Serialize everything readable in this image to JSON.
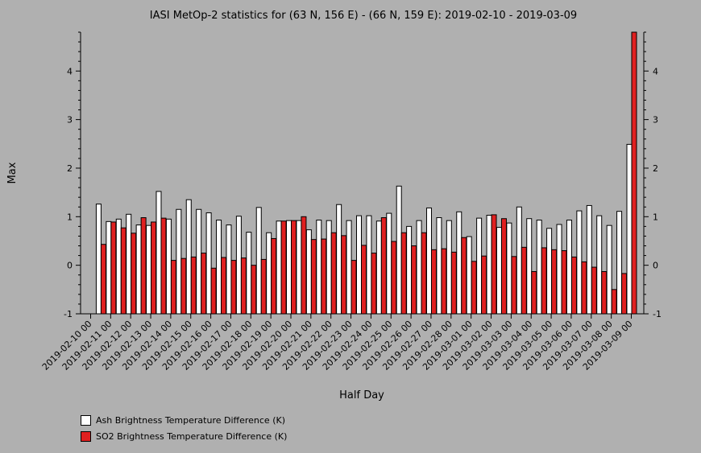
{
  "chart_data": {
    "type": "bar",
    "title": "IASI MetOp-2 statistics for (63 N, 156 E) - (66 N, 159 E): 2019-02-10 - 2019-03-09",
    "xlabel": "Half Day",
    "ylabel": "Max",
    "ylim": [
      -1,
      4.8
    ],
    "yticks": [
      -1,
      0,
      1,
      2,
      3,
      4
    ],
    "xtick_labels": [
      "2019-02-10 00",
      "2019-02-11 00",
      "2019-02-12 00",
      "2019-02-13 00",
      "2019-02-14 00",
      "2019-02-15 00",
      "2019-02-16 00",
      "2019-02-17 00",
      "2019-02-18 00",
      "2019-02-19 00",
      "2019-02-20 00",
      "2019-02-21 00",
      "2019-02-22 00",
      "2019-02-23 00",
      "2019-02-24 00",
      "2019-02-25 00",
      "2019-02-26 00",
      "2019-02-27 00",
      "2019-02-28 00",
      "2019-03-01 00",
      "2019-03-02 00",
      "2019-03-03 00",
      "2019-03-04 00",
      "2019-03-05 00",
      "2019-03-06 00",
      "2019-03-07 00",
      "2019-03-08 00",
      "2019-03-09 00"
    ],
    "series": [
      {
        "name": "Ash Brightness Temperature Difference (K)",
        "color": "#ffffff",
        "values": [
          1.26,
          0.9,
          0.95,
          1.05,
          0.83,
          0.82,
          1.52,
          0.95,
          1.15,
          1.35,
          1.15,
          1.08,
          0.93,
          0.83,
          1.01,
          0.68,
          1.19,
          0.67,
          0.91,
          0.92,
          0.92,
          0.73,
          0.93,
          0.92,
          1.25,
          0.92,
          1.02,
          1.02,
          0.91,
          1.07,
          1.63,
          0.8,
          0.92,
          1.18,
          0.98,
          0.92,
          1.1,
          0.59,
          0.97,
          1.03,
          0.78,
          0.87,
          1.2,
          0.96,
          0.93,
          0.76,
          0.84,
          0.93,
          1.12,
          1.23,
          1.02,
          0.82,
          1.11,
          2.49
        ]
      },
      {
        "name": "SO2 Brightness Temperature Difference (K)",
        "color": "#e02020",
        "values": [
          0.43,
          0.89,
          0.77,
          0.66,
          0.98,
          0.89,
          0.97,
          0.1,
          0.14,
          0.17,
          0.25,
          -0.06,
          0.16,
          0.1,
          0.15,
          0.0,
          0.12,
          0.55,
          0.91,
          0.92,
          1.0,
          0.53,
          0.54,
          0.67,
          0.61,
          0.1,
          0.41,
          0.25,
          0.98,
          0.49,
          0.67,
          0.4,
          0.67,
          0.32,
          0.34,
          0.27,
          0.57,
          0.08,
          0.19,
          1.04,
          0.96,
          0.18,
          0.37,
          -0.13,
          0.36,
          0.32,
          0.3,
          0.17,
          0.07,
          -0.04,
          -0.13,
          -0.5,
          -0.17,
          4.8
        ]
      }
    ],
    "legend_placement": "bottom-left",
    "grid": false
  }
}
